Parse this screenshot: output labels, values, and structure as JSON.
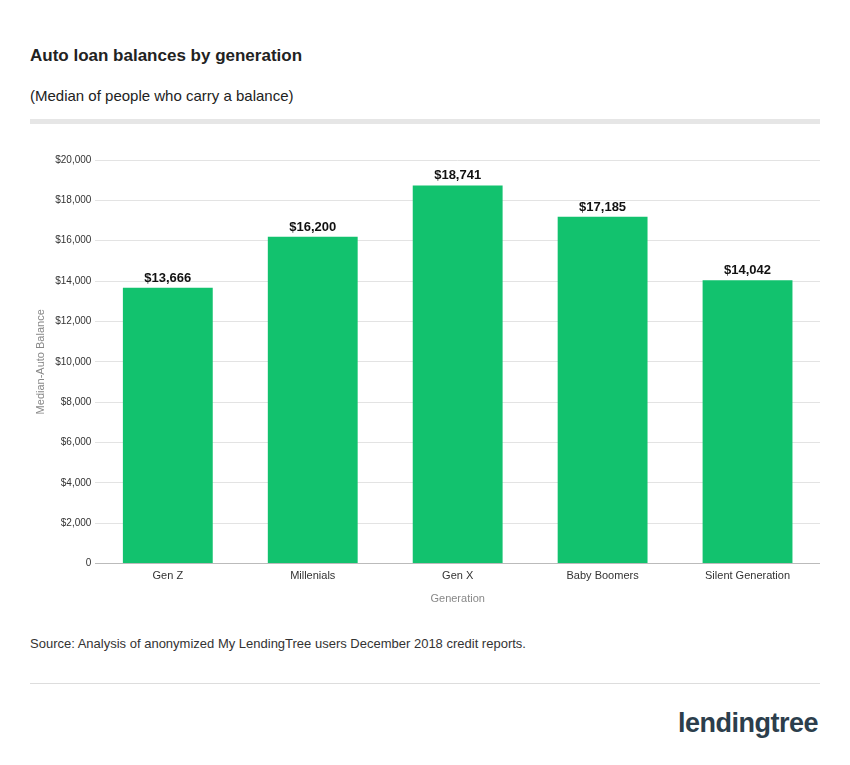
{
  "chart_data": {
    "type": "bar",
    "title": "Auto loan balances by generation",
    "subtitle": "(Median of people who carry a balance)",
    "x_label": "Generation",
    "y_label": "Median-Auto Balance",
    "source": "Source: Analysis of anonymized My LendingTree users December 2018 credit reports.",
    "logo": "lendingtree",
    "categories": [
      "Gen Z",
      "Millenials",
      "Gen X",
      "Baby Boomers",
      "Silent Generation"
    ],
    "values": [
      13666,
      16200,
      18741,
      17185,
      14042
    ],
    "value_labels": [
      "$13,666",
      "$16,200",
      "$18,741",
      "$17,185",
      "$14,042"
    ],
    "data_labels": true,
    "color": "#12c26e",
    "ylim": [
      0,
      20000
    ],
    "yticks": [
      0,
      {
        "value": 2000,
        "label": "$2,000"
      },
      {
        "value": 4000,
        "label": "$4,000"
      },
      {
        "value": 6000,
        "label": "$6,000"
      },
      {
        "value": 8000,
        "label": "$8,000"
      },
      {
        "value": 10000,
        "label": "$10,000"
      },
      {
        "value": 12000,
        "label": "$12,000"
      },
      {
        "value": 14000,
        "label": "$14,000"
      },
      {
        "value": 16000,
        "label": "$16,000"
      },
      {
        "value": 18000,
        "label": "$18,000"
      },
      {
        "value": 20000,
        "label": "$20,000"
      }
    ],
    "grid": true
  }
}
